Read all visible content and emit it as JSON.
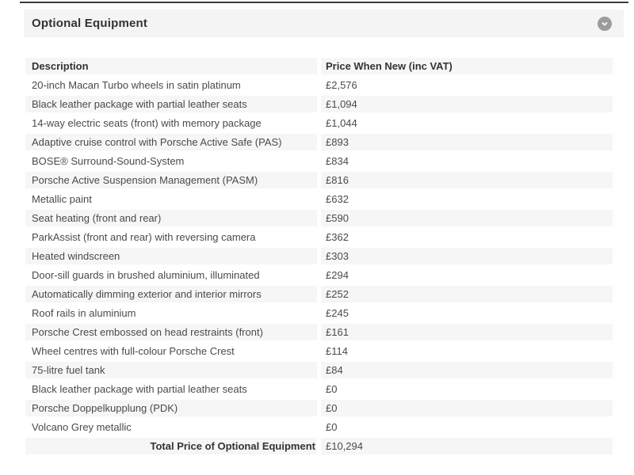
{
  "panel": {
    "title": "Optional Equipment",
    "collapse_icon": "chevron-down-icon"
  },
  "table": {
    "columns": [
      "Description",
      "Price When New (inc VAT)"
    ],
    "rows": [
      {
        "description": "20-inch Macan Turbo wheels in satin platinum",
        "price": "£2,576"
      },
      {
        "description": "Black leather package with partial leather seats",
        "price": "£1,094"
      },
      {
        "description": "14-way electric seats (front) with memory package",
        "price": "£1,044"
      },
      {
        "description": "Adaptive cruise control with Porsche Active Safe (PAS)",
        "price": "£893"
      },
      {
        "description": "BOSE® Surround-Sound-System",
        "price": "£834"
      },
      {
        "description": "Porsche Active Suspension Management (PASM)",
        "price": "£816"
      },
      {
        "description": "Metallic paint",
        "price": "£632"
      },
      {
        "description": "Seat heating (front and rear)",
        "price": "£590"
      },
      {
        "description": "ParkAssist (front and rear) with reversing camera",
        "price": "£362"
      },
      {
        "description": "Heated windscreen",
        "price": "£303"
      },
      {
        "description": "Door-sill guards in brushed aluminium, illuminated",
        "price": "£294"
      },
      {
        "description": "Automatically dimming exterior and interior mirrors",
        "price": "£252"
      },
      {
        "description": "Roof rails in aluminium",
        "price": "£245"
      },
      {
        "description": "Porsche Crest embossed on head restraints (front)",
        "price": "£161"
      },
      {
        "description": "Wheel centres with full-colour Porsche Crest",
        "price": "£114"
      },
      {
        "description": "75-litre fuel tank",
        "price": "£84"
      },
      {
        "description": "Black leather package with partial leather seats",
        "price": "£0"
      },
      {
        "description": "Porsche Doppelkupplung (PDK)",
        "price": "£0"
      },
      {
        "description": "Volcano Grey metallic",
        "price": "£0"
      }
    ],
    "total_label": "Total Price of Optional Equipment",
    "total_price": "£10,294"
  },
  "colors": {
    "header_bg": "#f4f4f4",
    "stripe": "#f6f6f6",
    "icon_circle": "#9c9c9c",
    "text_dark": "#333333",
    "text_body": "#4a4a4a",
    "top_rule": "#3d3d3d"
  }
}
